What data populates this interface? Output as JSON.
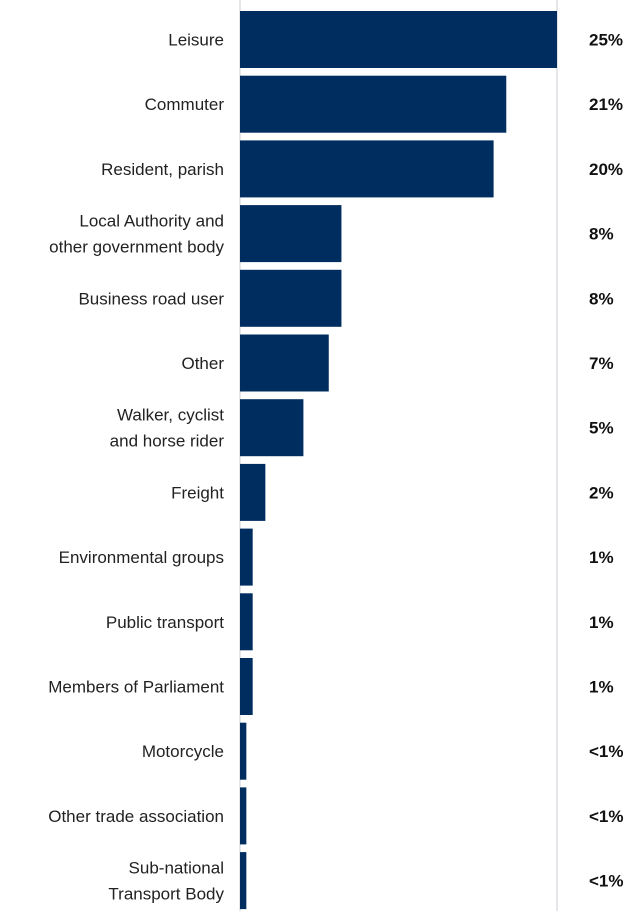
{
  "chart_data": {
    "type": "bar",
    "orientation": "horizontal",
    "categories": [
      "Leisure",
      "Commuter",
      "Resident, parish",
      "Local Authority and other government body",
      "Business road user",
      "Other",
      "Walker, cyclist and horse rider",
      "Freight",
      "Environmental groups",
      "Public transport",
      "Members of Parliament",
      "Motorcycle",
      "Other trade association",
      "Sub-national Transport Body"
    ],
    "category_lines": [
      [
        "Leisure"
      ],
      [
        "Commuter"
      ],
      [
        "Resident, parish"
      ],
      [
        "Local Authority and",
        "other government body"
      ],
      [
        "Business road user"
      ],
      [
        "Other"
      ],
      [
        "Walker, cyclist",
        "and horse rider"
      ],
      [
        "Freight"
      ],
      [
        "Environmental groups"
      ],
      [
        "Public transport"
      ],
      [
        "Members of Parliament"
      ],
      [
        "Motorcycle"
      ],
      [
        "Other trade association"
      ],
      [
        "Sub-national",
        "Transport Body"
      ]
    ],
    "values": [
      25,
      21,
      20,
      8,
      8,
      7,
      5,
      2,
      1,
      1,
      1,
      0.5,
      0.5,
      0.5
    ],
    "value_labels": [
      "25%",
      "21%",
      "20%",
      "8%",
      "8%",
      "7%",
      "5%",
      "2%",
      "1%",
      "1%",
      "1%",
      "<1%",
      "<1%",
      "<1%"
    ],
    "xlim": [
      0,
      25
    ],
    "grid": false,
    "bar_color": "#002D5F",
    "axis_color": "#C8CDD3"
  }
}
